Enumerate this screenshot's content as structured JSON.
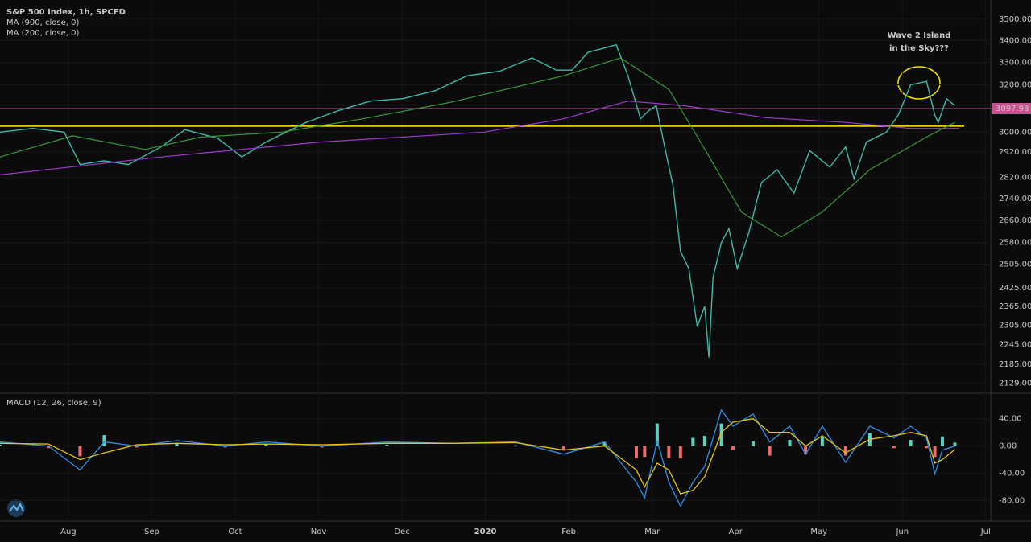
{
  "chart_data": [
    {
      "type": "line",
      "log_scale": true,
      "grid": true,
      "legend": [
        "S&P 500 Index, 1h, SPCFD",
        "MA (900, close, 0)",
        "MA (200, close, 0)"
      ],
      "annotations": [
        "Wave 2 Island",
        "in the Sky???"
      ],
      "xlim": [
        0.18,
        12.06
      ],
      "xticks": [
        {
          "value": 1,
          "label": "Aug"
        },
        {
          "value": 2,
          "label": "Sep"
        },
        {
          "value": 3,
          "label": "Oct"
        },
        {
          "value": 4,
          "label": "Nov"
        },
        {
          "value": 5,
          "label": "Dec"
        },
        {
          "value": 6,
          "label": "2020"
        },
        {
          "value": 7,
          "label": "Feb"
        },
        {
          "value": 8,
          "label": "Mar"
        },
        {
          "value": 9,
          "label": "Apr"
        },
        {
          "value": 10,
          "label": "May"
        },
        {
          "value": 11,
          "label": "Jun"
        },
        {
          "value": 12,
          "label": "Jul"
        }
      ],
      "ylim": [
        2105,
        3593
      ],
      "yticks": [
        {
          "value": 3500,
          "label": "3500.00"
        },
        {
          "value": 3400,
          "label": "3400.00"
        },
        {
          "value": 3300,
          "label": "3300.00"
        },
        {
          "value": 3200,
          "label": "3200.00"
        },
        {
          "value": 3000,
          "label": "3000.00"
        },
        {
          "value": 2920,
          "label": "2920.00"
        },
        {
          "value": 2820,
          "label": "2820.00"
        },
        {
          "value": 2740,
          "label": "2740.00"
        },
        {
          "value": 2660,
          "label": "2660.00"
        },
        {
          "value": 2580,
          "label": "2580.00"
        },
        {
          "value": 2505,
          "label": "2505.00"
        },
        {
          "value": 2425,
          "label": "2425.00"
        },
        {
          "value": 2365,
          "label": "2365.00"
        },
        {
          "value": 2305,
          "label": "2305.00"
        },
        {
          "value": 2245,
          "label": "2245.00"
        },
        {
          "value": 2185,
          "label": "2185.00"
        },
        {
          "value": 2129,
          "label": "2129.00"
        }
      ],
      "hlines": [
        {
          "value": 3097.98,
          "color": "#c2548f",
          "tag_color": "#c2548f"
        },
        {
          "value": 3025,
          "color": "#e6d200"
        }
      ],
      "series": [
        {
          "name": "S&P 500 Index, 1h, SPCFD",
          "color": "#3fb8a8",
          "x": [
            0.18,
            0.57,
            0.95,
            1.14,
            1.43,
            1.72,
            2.11,
            2.4,
            2.79,
            3.08,
            3.37,
            3.85,
            4.24,
            4.62,
            5.01,
            5.4,
            5.78,
            6.17,
            6.56,
            6.85,
            7.04,
            7.23,
            7.57,
            7.71,
            7.86,
            7.96,
            8.05,
            8.15,
            8.25,
            8.34,
            8.44,
            8.54,
            8.63,
            8.68,
            8.73,
            8.83,
            8.92,
            9.02,
            9.16,
            9.31,
            9.5,
            9.7,
            9.89,
            10.13,
            10.32,
            10.42,
            10.57,
            10.81,
            10.95,
            11.1,
            11.29,
            11.39,
            11.43,
            11.53,
            11.63
          ],
          "values": [
            3000,
            3015,
            3000,
            2870,
            2885,
            2870,
            2940,
            3010,
            2975,
            2900,
            2960,
            3040,
            3090,
            3130,
            3140,
            3175,
            3240,
            3260,
            3320,
            3265,
            3265,
            3345,
            3380,
            3240,
            3055,
            3090,
            3110,
            2940,
            2790,
            2550,
            2490,
            2300,
            2365,
            2205,
            2460,
            2580,
            2630,
            2490,
            2615,
            2800,
            2850,
            2760,
            2925,
            2860,
            2940,
            2815,
            2960,
            3000,
            3070,
            3200,
            3215,
            3070,
            3040,
            3140,
            3110
          ]
        },
        {
          "name": "MA (900, close, 0)",
          "color": "#9c3ad0",
          "x": [
            0.18,
            2.11,
            4.04,
            5.98,
            6.94,
            7.71,
            8.39,
            9.36,
            10.32,
            11.1,
            11.68
          ],
          "values": [
            2830,
            2900,
            2960,
            3000,
            3055,
            3130,
            3110,
            3060,
            3040,
            3015,
            3015
          ]
        },
        {
          "name": "MA (200, close, 0)",
          "color": "#3a9a3a",
          "x": [
            0.18,
            1.05,
            1.92,
            2.59,
            3.56,
            4.53,
            5.59,
            6.94,
            7.62,
            8.2,
            8.58,
            9.07,
            9.55,
            10.04,
            10.61,
            11.29,
            11.63
          ],
          "values": [
            2900,
            2985,
            2930,
            2980,
            3000,
            3055,
            3125,
            3240,
            3320,
            3180,
            2960,
            2690,
            2600,
            2690,
            2850,
            2980,
            3040
          ]
        }
      ]
    },
    {
      "type": "macd",
      "title": "MACD (12, 26, close, 9)",
      "grid": true,
      "xlim": [
        0.18,
        12.06
      ],
      "ylim": [
        -110,
        75
      ],
      "yticks": [
        {
          "value": 40,
          "label": "40.00"
        },
        {
          "value": 0,
          "label": "0.00"
        },
        {
          "value": -40,
          "label": "-40.00"
        },
        {
          "value": -80,
          "label": "-80.00"
        }
      ],
      "x": [
        0.18,
        0.76,
        1.14,
        1.43,
        1.82,
        2.3,
        2.88,
        3.37,
        4.04,
        4.82,
        5.59,
        6.36,
        6.94,
        7.43,
        7.81,
        7.91,
        8.06,
        8.2,
        8.34,
        8.49,
        8.63,
        8.83,
        8.97,
        9.21,
        9.41,
        9.65,
        9.84,
        10.04,
        10.32,
        10.61,
        10.9,
        11.1,
        11.29,
        11.39,
        11.48,
        11.63
      ],
      "macd": {
        "color": "#2e8fe6",
        "values": [
          6,
          0,
          -35,
          6,
          0,
          8,
          0,
          6,
          0,
          6,
          4,
          6,
          -12,
          6,
          -53,
          -76,
          8,
          -53,
          -88,
          -53,
          -30,
          53,
          29,
          47,
          6,
          29,
          -12,
          29,
          -24,
          29,
          12,
          29,
          12,
          -41,
          -6,
          0
        ]
      },
      "signal": {
        "color": "#e8c51a",
        "values": [
          4,
          3,
          -20,
          -10,
          2,
          4,
          2,
          3,
          2,
          4,
          4,
          5,
          -6,
          0,
          -35,
          -60,
          -25,
          -35,
          -70,
          -65,
          -45,
          20,
          35,
          40,
          20,
          20,
          0,
          15,
          -10,
          10,
          15,
          20,
          15,
          -25,
          -20,
          -5
        ]
      },
      "histogram": {
        "up_color": "#5fd1c1",
        "down_color": "#ef6a6a",
        "values": [
          2,
          -3,
          -15,
          16,
          -2,
          4,
          -2,
          3,
          -2,
          2,
          0,
          1,
          -6,
          6,
          -18,
          -16,
          33,
          -18,
          -18,
          12,
          15,
          33,
          -6,
          7,
          -14,
          9,
          -12,
          14,
          -14,
          19,
          -3,
          9,
          -3,
          -16,
          14,
          5
        ]
      }
    }
  ]
}
